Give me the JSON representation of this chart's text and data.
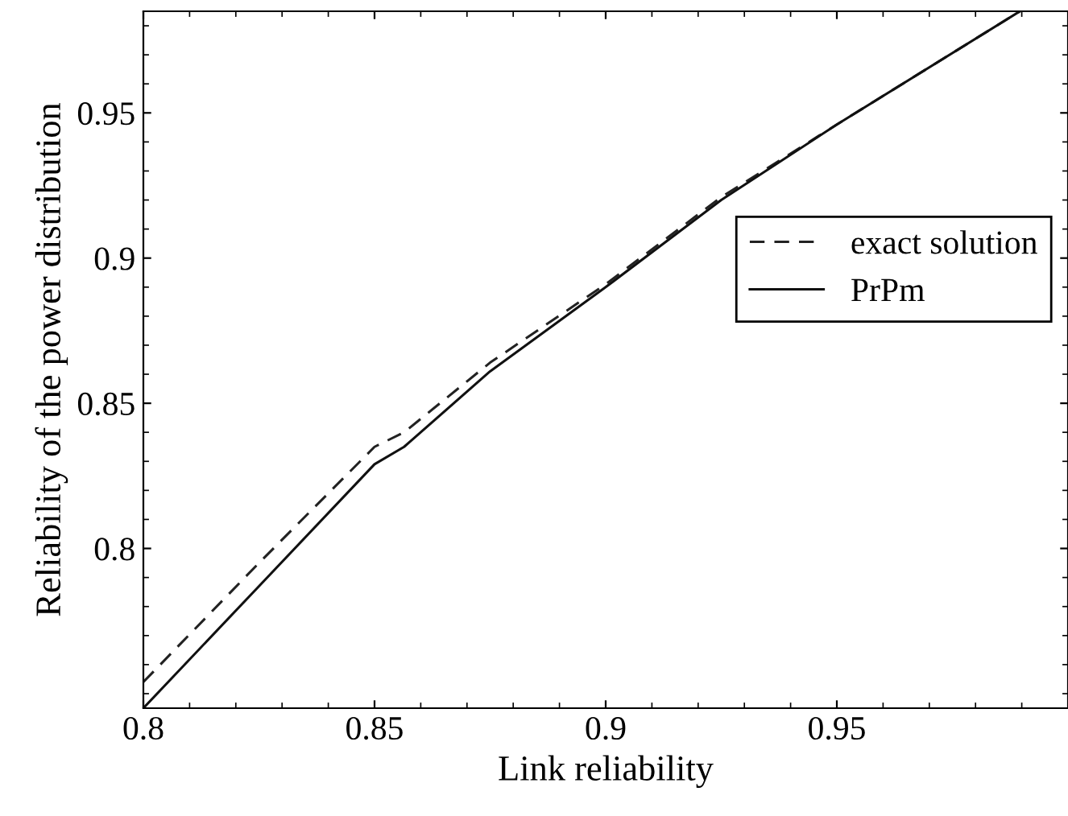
{
  "chart_data": {
    "type": "line",
    "xlabel": "Link reliability",
    "ylabel": "Reliability of the power distribution",
    "x": [
      0.8,
      0.825,
      0.85,
      0.8564,
      0.875,
      0.9,
      0.925,
      0.95,
      0.9896
    ],
    "series": [
      {
        "name": "exact solution",
        "color": "#222222",
        "line_style": "dashed",
        "values": [
          0.754,
          0.795,
          0.835,
          0.84,
          0.864,
          0.891,
          0.921,
          0.946,
          0.985
        ]
      },
      {
        "name": "PrPm",
        "color": "#111111",
        "line_style": "solid",
        "values": [
          0.745,
          0.787,
          0.829,
          0.835,
          0.861,
          0.89,
          0.92,
          0.946,
          0.985
        ]
      }
    ],
    "xlim": [
      0.8,
      1.0
    ],
    "ylim": [
      0.745,
      0.985
    ],
    "xticks": [
      0.8,
      0.85,
      0.9,
      0.95
    ],
    "yticks": [
      0.8,
      0.85,
      0.9,
      0.95
    ],
    "grid": false,
    "legend": "right",
    "marker": "none"
  }
}
